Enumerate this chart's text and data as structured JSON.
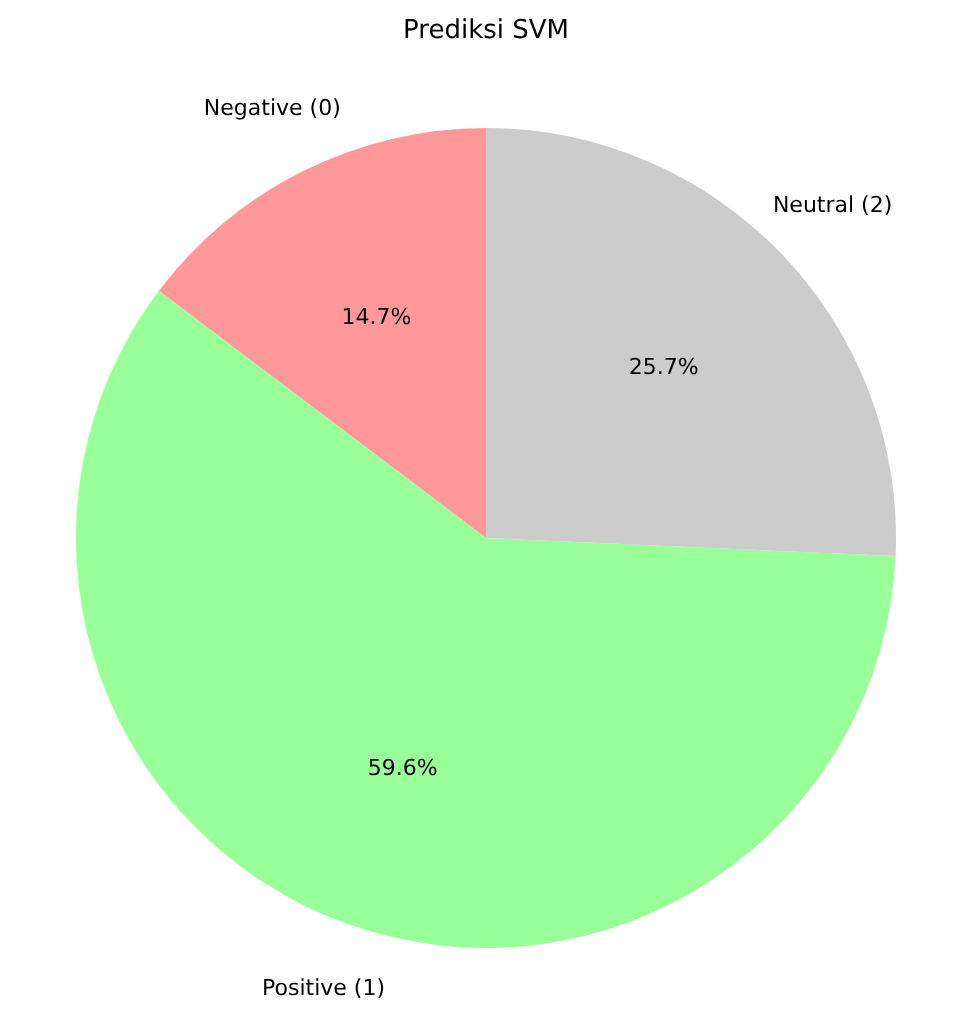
{
  "chart_data": {
    "type": "pie",
    "title": "Prediksi SVM",
    "categories": [
      "Negative (0)",
      "Positive (1)",
      "Neutral (2)"
    ],
    "values": [
      14.7,
      59.6,
      25.7
    ],
    "value_labels": [
      "14.7%",
      "59.6%",
      "25.7%"
    ],
    "colors": [
      "#ff9999",
      "#99ff99",
      "#cccccc"
    ]
  }
}
